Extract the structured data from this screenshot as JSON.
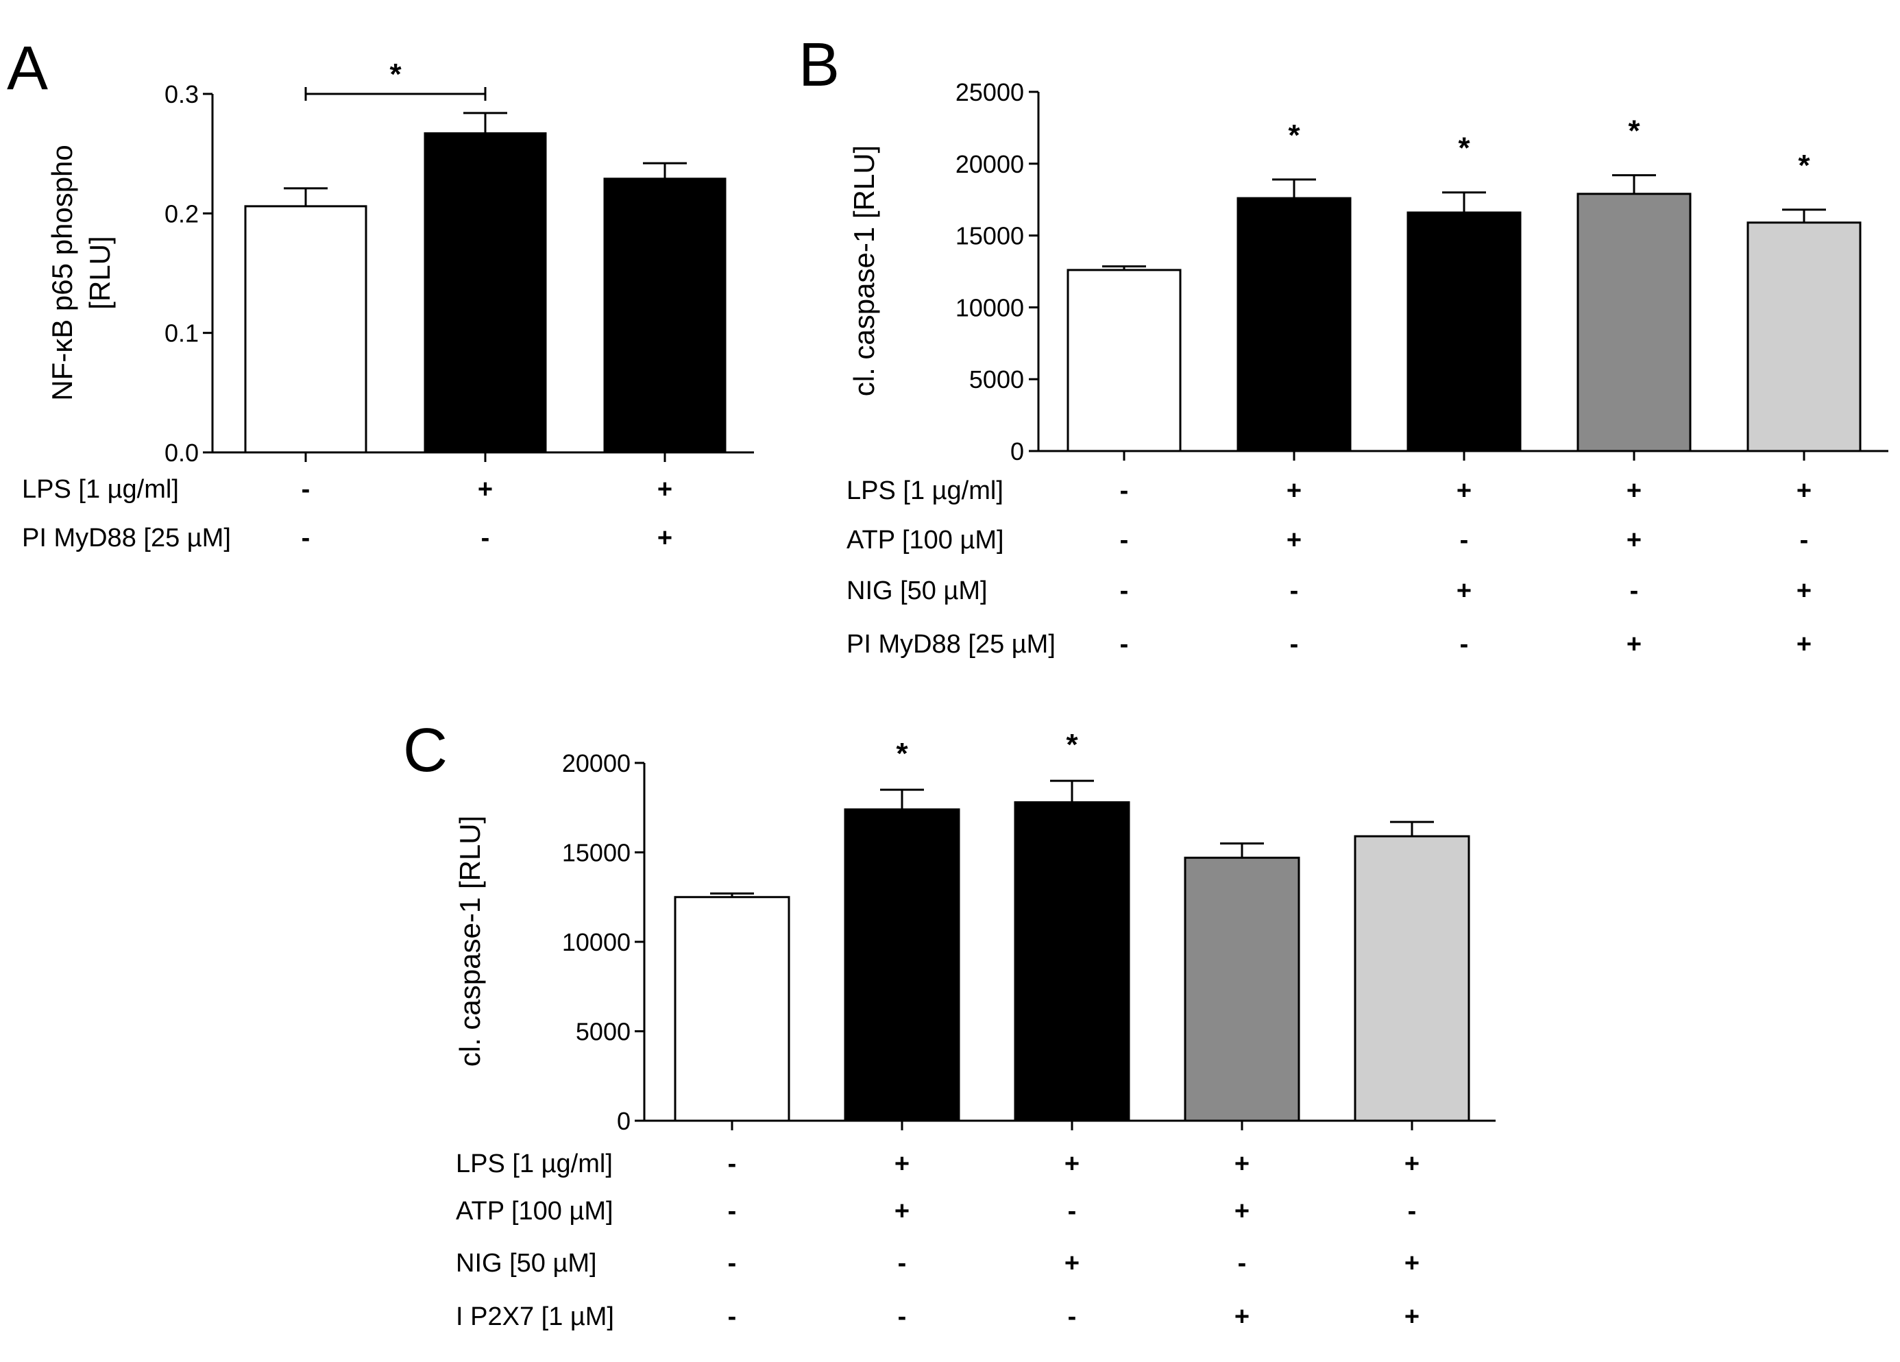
{
  "chart_data": [
    {
      "panel": "A",
      "type": "bar",
      "ylabel_lines": [
        "NF-κB p65 phospho",
        "[RLU]"
      ],
      "ylim": [
        0,
        0.3
      ],
      "yticks": [
        0.0,
        0.1,
        0.2,
        0.3
      ],
      "ytick_labels": [
        "0.0",
        "0.1",
        "0.2",
        "0.3"
      ],
      "values": [
        0.206,
        0.267,
        0.229
      ],
      "errors": [
        0.015,
        0.017,
        0.013
      ],
      "bar_colors": [
        "#ffffff",
        "#000000",
        "#000000"
      ],
      "condition_rows": [
        {
          "label": "LPS [1 µg/ml]",
          "signs": [
            "-",
            "+",
            "+"
          ]
        },
        {
          "label": "PI MyD88 [25 µM]",
          "signs": [
            "-",
            "-",
            "+"
          ]
        }
      ],
      "significance": [
        {
          "type": "bracket",
          "from": 0,
          "to": 1,
          "text": "*"
        }
      ]
    },
    {
      "panel": "B",
      "type": "bar",
      "ylabel_lines": [
        "cl. caspase-1 [RLU]"
      ],
      "ylim": [
        0,
        25000
      ],
      "yticks": [
        0,
        5000,
        10000,
        15000,
        20000,
        25000
      ],
      "ytick_labels": [
        "0",
        "5000",
        "10000",
        "15000",
        "20000",
        "25000"
      ],
      "values": [
        12600,
        17600,
        16600,
        17900,
        15900
      ],
      "errors": [
        250,
        1300,
        1400,
        1300,
        900
      ],
      "bar_colors": [
        "#ffffff",
        "#000000",
        "#000000",
        "#8a8a8a",
        "#cfcfcf"
      ],
      "condition_rows": [
        {
          "label": "LPS [1 µg/ml]",
          "signs": [
            "-",
            "+",
            "+",
            "+",
            "+"
          ]
        },
        {
          "label": "ATP [100 µM]",
          "signs": [
            "-",
            "+",
            "-",
            "+",
            "-"
          ]
        },
        {
          "label": "NIG [50 µM]",
          "signs": [
            "-",
            "-",
            "+",
            "-",
            "+"
          ]
        },
        {
          "label": "PI MyD88 [25 µM]",
          "signs": [
            "-",
            "-",
            "-",
            "+",
            "+"
          ]
        }
      ],
      "significance": [
        {
          "type": "star",
          "bar": 1,
          "text": "*"
        },
        {
          "type": "star",
          "bar": 2,
          "text": "*"
        },
        {
          "type": "star",
          "bar": 3,
          "text": "*"
        },
        {
          "type": "star",
          "bar": 4,
          "text": "*"
        }
      ]
    },
    {
      "panel": "C",
      "type": "bar",
      "ylabel_lines": [
        "cl. caspase-1 [RLU]"
      ],
      "ylim": [
        0,
        20000
      ],
      "yticks": [
        0,
        5000,
        10000,
        15000,
        20000
      ],
      "ytick_labels": [
        "0",
        "5000",
        "10000",
        "15000",
        "20000"
      ],
      "values": [
        12500,
        17400,
        17800,
        14700,
        15900
      ],
      "errors": [
        200,
        1100,
        1200,
        800,
        800
      ],
      "bar_colors": [
        "#ffffff",
        "#000000",
        "#000000",
        "#8a8a8a",
        "#cfcfcf"
      ],
      "condition_rows": [
        {
          "label": "LPS [1 µg/ml]",
          "signs": [
            "-",
            "+",
            "+",
            "+",
            "+"
          ]
        },
        {
          "label": "ATP [100 µM]",
          "signs": [
            "-",
            "+",
            "-",
            "+",
            "-"
          ]
        },
        {
          "label": "NIG [50 µM]",
          "signs": [
            "-",
            "-",
            "+",
            "-",
            "+"
          ]
        },
        {
          "label": "I P2X7 [1 µM]",
          "signs": [
            "-",
            "-",
            "-",
            "+",
            "+"
          ]
        }
      ],
      "significance": [
        {
          "type": "star",
          "bar": 1,
          "text": "*"
        },
        {
          "type": "star",
          "bar": 2,
          "text": "*"
        }
      ]
    }
  ]
}
